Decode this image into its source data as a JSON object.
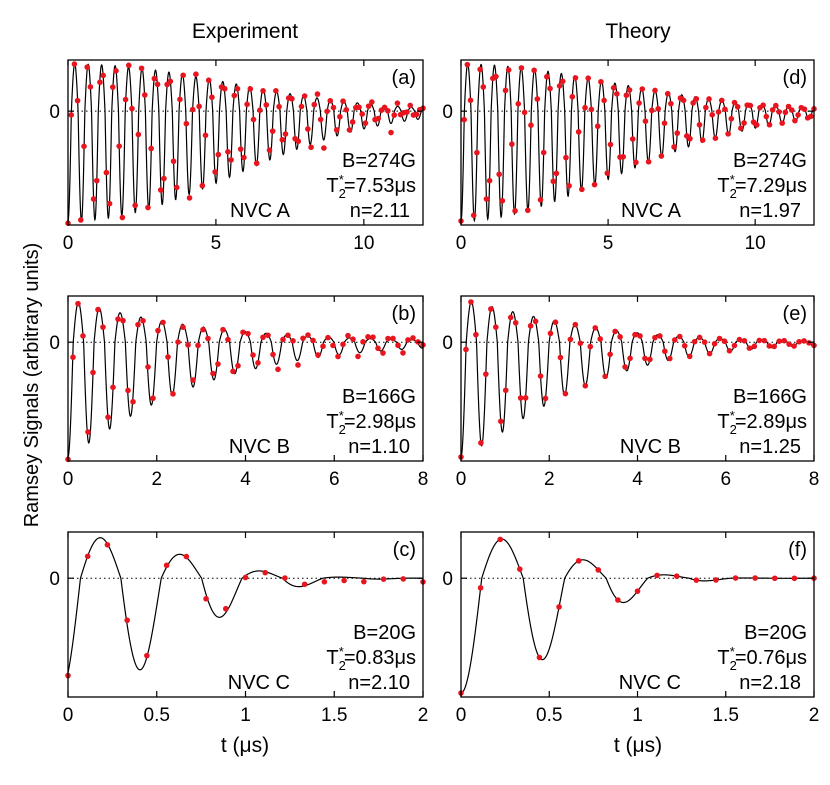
{
  "figure": {
    "column_titles": [
      "Experiment",
      "Theory"
    ],
    "ylabel": "Ramsey Signals (arbitrary units)",
    "xlabel": "t (μs)",
    "colors": {
      "data": "#e8141e",
      "fit": "#000000",
      "axis": "#000000"
    }
  },
  "chart_data": [
    {
      "type": "line",
      "panel": "(a)",
      "column": "Experiment",
      "xlim": [
        0,
        12
      ],
      "xticks": [
        "0",
        "5",
        "10"
      ],
      "ytick": "0",
      "series": [
        {
          "name": "data",
          "kind": "scatter"
        },
        {
          "name": "fit",
          "kind": "line"
        }
      ],
      "model": {
        "period": 0.455,
        "decay": 7.53,
        "n": 2.11,
        "phase": 0,
        "noise": 0.09
      },
      "annotation": {
        "B": "B=274G",
        "T_pre": "T",
        "T_sub": "2",
        "T_sup": "*",
        "T_val": "=7.53μs",
        "n": "n=2.11",
        "nvc": "NVC A"
      }
    },
    {
      "type": "line",
      "panel": "(b)",
      "column": "Experiment",
      "xlim": [
        0,
        8
      ],
      "xticks": [
        "0",
        "2",
        "4",
        "6",
        "8"
      ],
      "ytick": "0",
      "series": [
        {
          "name": "data",
          "kind": "scatter"
        },
        {
          "name": "fit",
          "kind": "line"
        }
      ],
      "model": {
        "period": 0.47,
        "decay": 2.98,
        "n": 1.1,
        "phase": 0,
        "noise": 0.08
      },
      "annotation": {
        "B": "B=166G",
        "T_pre": "T",
        "T_sub": "2",
        "T_sup": "*",
        "T_val": "=2.98μs",
        "n": "n=1.10",
        "nvc": "NVC B"
      }
    },
    {
      "type": "line",
      "panel": "(c)",
      "column": "Experiment",
      "xlim": [
        0,
        2
      ],
      "xticks": [
        "0",
        "0.5",
        "1",
        "1.5",
        "2"
      ],
      "ytick": "0",
      "series": [
        {
          "name": "data",
          "kind": "scatter"
        },
        {
          "name": "fit",
          "kind": "line"
        }
      ],
      "model": {
        "period": 0.455,
        "decay": 0.83,
        "n": 2.1,
        "phase": 0.6,
        "noise": 0.05
      },
      "annotation": {
        "B": "B=20G",
        "T_pre": "T",
        "T_sub": "2",
        "T_sup": "*",
        "T_val": "=0.83μs",
        "n": "n=2.10",
        "nvc": "NVC C"
      }
    },
    {
      "type": "line",
      "panel": "(d)",
      "column": "Theory",
      "xlim": [
        0,
        12
      ],
      "xticks": [
        "0",
        "5",
        "10"
      ],
      "ytick": "0",
      "series": [
        {
          "name": "data",
          "kind": "scatter"
        },
        {
          "name": "fit",
          "kind": "line"
        }
      ],
      "model": {
        "period": 0.455,
        "decay": 7.29,
        "n": 1.97,
        "phase": 0,
        "noise": 0
      },
      "annotation": {
        "B": "B=274G",
        "T_pre": "T",
        "T_sub": "2",
        "T_sup": "*",
        "T_val": "=7.29μs",
        "n": "n=1.97",
        "nvc": "NVC A"
      }
    },
    {
      "type": "line",
      "panel": "(e)",
      "column": "Theory",
      "xlim": [
        0,
        8
      ],
      "xticks": [
        "0",
        "2",
        "4",
        "6",
        "8"
      ],
      "ytick": "0",
      "series": [
        {
          "name": "data",
          "kind": "scatter"
        },
        {
          "name": "fit",
          "kind": "line"
        }
      ],
      "model": {
        "period": 0.47,
        "decay": 2.89,
        "n": 1.25,
        "phase": 0,
        "noise": 0
      },
      "annotation": {
        "B": "B=166G",
        "T_pre": "T",
        "T_sub": "2",
        "T_sup": "*",
        "T_val": "=2.89μs",
        "n": "n=1.25",
        "nvc": "NVC B"
      }
    },
    {
      "type": "line",
      "panel": "(f)",
      "column": "Theory",
      "xlim": [
        0,
        2
      ],
      "xticks": [
        "0",
        "0.5",
        "1",
        "1.5",
        "2"
      ],
      "ytick": "0",
      "series": [
        {
          "name": "data",
          "kind": "scatter"
        },
        {
          "name": "fit",
          "kind": "line"
        }
      ],
      "model": {
        "period": 0.47,
        "decay": 0.76,
        "n": 2.18,
        "phase": 0,
        "noise": 0
      },
      "annotation": {
        "B": "B=20G",
        "T_pre": "T",
        "T_sub": "2",
        "T_sup": "*",
        "T_val": "=0.76μs",
        "n": "n=2.18",
        "nvc": "NVC C"
      }
    }
  ]
}
